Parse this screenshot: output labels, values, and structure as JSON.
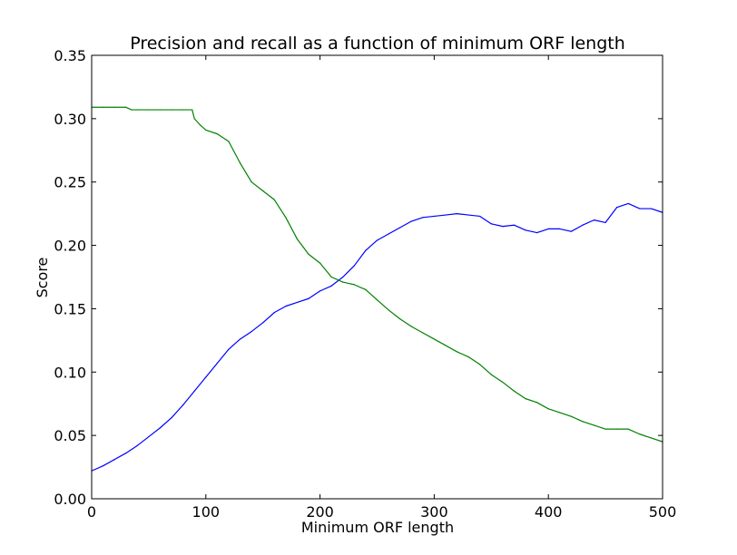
{
  "chart_data": {
    "type": "line",
    "title": "Precision and recall as a function of minimum ORF length",
    "xlabel": "Minimum ORF length",
    "ylabel": "Score",
    "xlim": [
      0,
      500
    ],
    "ylim": [
      0,
      0.35
    ],
    "xticks": [
      "0",
      "100",
      "200",
      "300",
      "400",
      "500"
    ],
    "yticks": [
      "0.00",
      "0.05",
      "0.10",
      "0.15",
      "0.20",
      "0.25",
      "0.30",
      "0.35"
    ],
    "grid": false,
    "series": [
      {
        "color": "#0000ff",
        "x": [
          0,
          10,
          20,
          30,
          40,
          50,
          60,
          70,
          80,
          90,
          100,
          110,
          120,
          130,
          140,
          150,
          160,
          170,
          180,
          190,
          200,
          210,
          220,
          230,
          240,
          250,
          260,
          270,
          280,
          290,
          300,
          310,
          320,
          330,
          340,
          350,
          360,
          370,
          380,
          390,
          400,
          410,
          420,
          430,
          440,
          450,
          460,
          470,
          480,
          490,
          500
        ],
        "y": [
          0.022,
          0.026,
          0.031,
          0.036,
          0.042,
          0.049,
          0.056,
          0.064,
          0.074,
          0.085,
          0.096,
          0.107,
          0.118,
          0.126,
          0.132,
          0.139,
          0.147,
          0.152,
          0.155,
          0.158,
          0.164,
          0.168,
          0.175,
          0.184,
          0.196,
          0.204,
          0.209,
          0.214,
          0.219,
          0.222,
          0.223,
          0.224,
          0.225,
          0.224,
          0.223,
          0.217,
          0.215,
          0.216,
          0.212,
          0.21,
          0.213,
          0.213,
          0.211,
          0.216,
          0.22,
          0.218,
          0.23,
          0.233,
          0.229,
          0.229,
          0.226
        ]
      },
      {
        "color": "#008000",
        "x": [
          0,
          10,
          20,
          30,
          35,
          40,
          50,
          60,
          70,
          80,
          88,
          90,
          95,
          100,
          110,
          120,
          130,
          140,
          150,
          160,
          170,
          180,
          190,
          200,
          210,
          220,
          230,
          240,
          250,
          260,
          270,
          280,
          290,
          300,
          310,
          320,
          330,
          340,
          350,
          360,
          370,
          380,
          390,
          400,
          410,
          420,
          430,
          440,
          450,
          460,
          470,
          480,
          490,
          500
        ],
        "y": [
          0.309,
          0.309,
          0.309,
          0.309,
          0.307,
          0.307,
          0.307,
          0.307,
          0.307,
          0.307,
          0.307,
          0.3,
          0.295,
          0.291,
          0.288,
          0.282,
          0.265,
          0.25,
          0.243,
          0.236,
          0.222,
          0.205,
          0.193,
          0.186,
          0.175,
          0.171,
          0.169,
          0.165,
          0.157,
          0.149,
          0.142,
          0.136,
          0.131,
          0.126,
          0.121,
          0.116,
          0.112,
          0.106,
          0.098,
          0.092,
          0.085,
          0.079,
          0.076,
          0.071,
          0.068,
          0.065,
          0.061,
          0.058,
          0.055,
          0.055,
          0.055,
          0.051,
          0.048,
          0.045
        ]
      }
    ]
  }
}
